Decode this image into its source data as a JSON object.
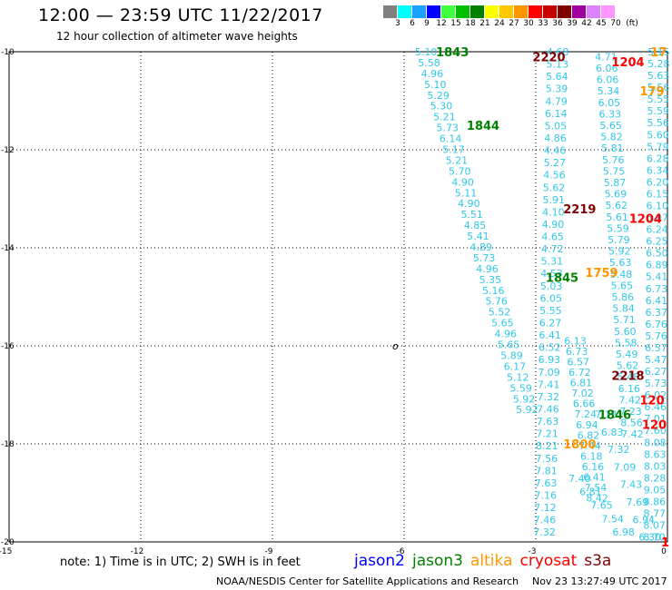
{
  "header": {
    "title": "12:00 — 23:59 UTC 11/22/2017",
    "subtitle": "12 hour collection of altimeter wave heights"
  },
  "color_legend": {
    "unit_label": "(ft)",
    "swatches": [
      {
        "value": "3",
        "color": "#808080"
      },
      {
        "value": "6",
        "color": "#00ffff"
      },
      {
        "value": "9",
        "color": "#1ea0ff"
      },
      {
        "value": "12",
        "color": "#0000ff"
      },
      {
        "value": "15",
        "color": "#40ff40"
      },
      {
        "value": "18",
        "color": "#00c000"
      },
      {
        "value": "21",
        "color": "#008000"
      },
      {
        "value": "24",
        "color": "#ffff00"
      },
      {
        "value": "27",
        "color": "#ffc800"
      },
      {
        "value": "30",
        "color": "#ff9600"
      },
      {
        "value": "33",
        "color": "#ff0000"
      },
      {
        "value": "36",
        "color": "#c80000"
      },
      {
        "value": "39",
        "color": "#800000"
      },
      {
        "value": "42",
        "color": "#a000a0"
      },
      {
        "value": "45",
        "color": "#dc82ff"
      },
      {
        "value": "70",
        "color": "#ff96ff"
      }
    ]
  },
  "map": {
    "lon_range": [
      -15,
      0
    ],
    "lat_range": [
      -20,
      -10
    ],
    "x_ticks": [
      "-15",
      "-12",
      "-9",
      "-6",
      "-3",
      "0"
    ],
    "x_tick_values": [
      -15,
      -12,
      -9,
      -6,
      -3,
      0
    ],
    "y_ticks": [
      "-10",
      "-12",
      "-14",
      "-16",
      "-18",
      "-20"
    ],
    "y_tick_values": [
      -10,
      -12,
      -14,
      -16,
      -18,
      -20
    ],
    "grid": "dotted"
  },
  "chart_data": {
    "type": "scatter",
    "values_unit": "ft",
    "tracks": [
      {
        "pos": [
          [
            -5.5,
            -10
          ],
          [
            -3.2,
            -17.3
          ]
        ],
        "color": "#30c8e8",
        "values": [
          "5.10",
          "5.58",
          "4.96",
          "5.10",
          "5.29",
          "5.30",
          "5.21",
          "5.73",
          "6.14",
          "5.17",
          "5.21",
          "5.70",
          "4.90",
          "5.11",
          "4.90",
          "5.51",
          "4.85",
          "5.41",
          "4.89",
          "5.73",
          "4.96",
          "5.35",
          "5.16",
          "5.76",
          "5.52",
          "5.65",
          "4.96",
          "5.65",
          "5.89",
          "6.17",
          "5.12",
          "5.59",
          "5.92",
          "5.92"
        ]
      },
      {
        "pos": [
          [
            -2.5,
            -10
          ],
          [
            -2.8,
            -19.8
          ]
        ],
        "color": "#30c8e8",
        "values": [
          "4.68",
          "5.13",
          "5.64",
          "5.39",
          "4.79",
          "6.14",
          "5.05",
          "4.86",
          "4.46",
          "5.27",
          "4.56",
          "5.62",
          "5.91",
          "4.10",
          "4.90",
          "4.65",
          "4.72",
          "5.31",
          "4.53",
          "5.03",
          "6.05",
          "5.55",
          "6.27",
          "6.41",
          "6.52",
          "6.93",
          "7.09",
          "7.41",
          "7.32",
          "7.46",
          "7.63",
          "7.21",
          "8.21",
          "7.56",
          "7.81",
          "7.63",
          "7.16",
          "7.12",
          "7.46",
          "7.32"
        ]
      },
      {
        "pos": [
          [
            -2.1,
            -15.9
          ],
          [
            -1.6,
            -19.1
          ]
        ],
        "color": "#30c8e8",
        "values": [
          "6.13",
          "6.73",
          "6.57",
          "6.72",
          "6.81",
          "7.02",
          "6.66",
          "7.24",
          "6.94",
          "6.82",
          "7.44",
          "6.18",
          "6.16",
          "6.41",
          "7.54",
          "8.42"
        ]
      },
      {
        "pos": [
          [
            -1.4,
            -10.1
          ],
          [
            -0.8,
            -17.8
          ]
        ],
        "color": "#30c8e8",
        "values": [
          "4.71",
          "6.06",
          "6.06",
          "5.34",
          "6.05",
          "6.33",
          "5.65",
          "5.82",
          "5.81",
          "5.76",
          "5.75",
          "5.87",
          "5.69",
          "5.62",
          "5.61",
          "5.59",
          "5.79",
          "5.92",
          "5.63",
          "5.48",
          "5.65",
          "5.86",
          "5.84",
          "5.71",
          "5.60",
          "5.58",
          "5.49",
          "5.62",
          "5.48",
          "6.16",
          "7.42",
          "7.23",
          "8.56",
          "7.42"
        ]
      },
      {
        "pos": [
          [
            -0.2,
            -10
          ],
          [
            -0.3,
            -19.9
          ]
        ],
        "color": "#30c8e8",
        "values": [
          "5.15",
          "5.28",
          "5.63",
          "5.56",
          "5.55",
          "5.59",
          "5.56",
          "5.60",
          "5.79",
          "6.28",
          "6.34",
          "6.20",
          "6.15",
          "6.10",
          "6.07",
          "6.24",
          "6.25",
          "6.50",
          "6.89",
          "5.41",
          "6.73",
          "6.41",
          "6.37",
          "6.76",
          "5.76",
          "6.57",
          "5.47",
          "6.27",
          "5.73",
          "6.02",
          "6.46",
          "7.01",
          "7.60",
          "8.08",
          "8.63",
          "8.03",
          "8.28",
          "9.05",
          "8.86",
          "8.77",
          "8.07",
          "8.70"
        ]
      },
      {
        "pos": [
          [
            -1.4,
            -17.4
          ],
          [
            -0.4,
            -19.9
          ]
        ],
        "color": "#30c8e8",
        "values": [
          "7.13",
          "6.83",
          "7.32",
          "7.09",
          "7.43",
          "7.69",
          "6.94",
          "6.30"
        ]
      },
      {
        "pos": [
          [
            -2.0,
            -18.7
          ],
          [
            -1.0,
            -19.8
          ]
        ],
        "color": "#30c8e8",
        "values": [
          "7.40",
          "6.81",
          "7.65",
          "7.54",
          "6.98"
        ]
      }
    ],
    "time_labels": [
      {
        "text": "1843",
        "lon": -4.9,
        "lat": -10.0,
        "color": "#008000"
      },
      {
        "text": "1844",
        "lon": -4.2,
        "lat": -11.5,
        "color": "#008000"
      },
      {
        "text": "1845",
        "lon": -2.4,
        "lat": -14.6,
        "color": "#008000"
      },
      {
        "text": "1846",
        "lon": -1.2,
        "lat": -17.4,
        "color": "#008000"
      },
      {
        "text": "2220",
        "lon": -2.7,
        "lat": -10.1,
        "color": "#800000"
      },
      {
        "text": "2219",
        "lon": -2.0,
        "lat": -13.2,
        "color": "#800000"
      },
      {
        "text": "2218",
        "lon": -0.9,
        "lat": -16.6,
        "color": "#800000"
      },
      {
        "text": "1204",
        "lon": -0.9,
        "lat": -10.2,
        "color": "#ff0000"
      },
      {
        "text": "1204",
        "lon": -0.5,
        "lat": -13.4,
        "color": "#ff0000"
      },
      {
        "text": "120",
        "lon": -0.35,
        "lat": -17.1,
        "color": "#ff0000"
      },
      {
        "text": "120",
        "lon": -0.3,
        "lat": -17.6,
        "color": "#ff0000"
      },
      {
        "text": "1",
        "lon": -0.05,
        "lat": -20.0,
        "color": "#ff0000"
      },
      {
        "text": "17",
        "lon": -0.2,
        "lat": -10.0,
        "color": "#ff9600"
      },
      {
        "text": "179",
        "lon": -0.35,
        "lat": -10.8,
        "color": "#ff9600"
      },
      {
        "text": "1759",
        "lon": -1.5,
        "lat": -14.5,
        "color": "#ff9600"
      },
      {
        "text": "1800",
        "lon": -2.0,
        "lat": -18.0,
        "color": "#ff9600"
      }
    ],
    "marker": {
      "symbol": "o",
      "lon": -6.2,
      "lat": -16.0
    }
  },
  "footer": {
    "note": "note:  1) Time is in UTC;  2) SWH is in feet",
    "satellites": [
      {
        "name": "jason2",
        "color": "#0000ff"
      },
      {
        "name": "jason3",
        "color": "#008000"
      },
      {
        "name": "altika",
        "color": "#ff9600"
      },
      {
        "name": "cryosat",
        "color": "#ff0000"
      },
      {
        "name": "s3a",
        "color": "#800000"
      }
    ],
    "credit": "NOAA/NESDIS Center for Satellite Applications and Research",
    "timestamp": "Nov 23 13:27:49 UTC 2017"
  }
}
